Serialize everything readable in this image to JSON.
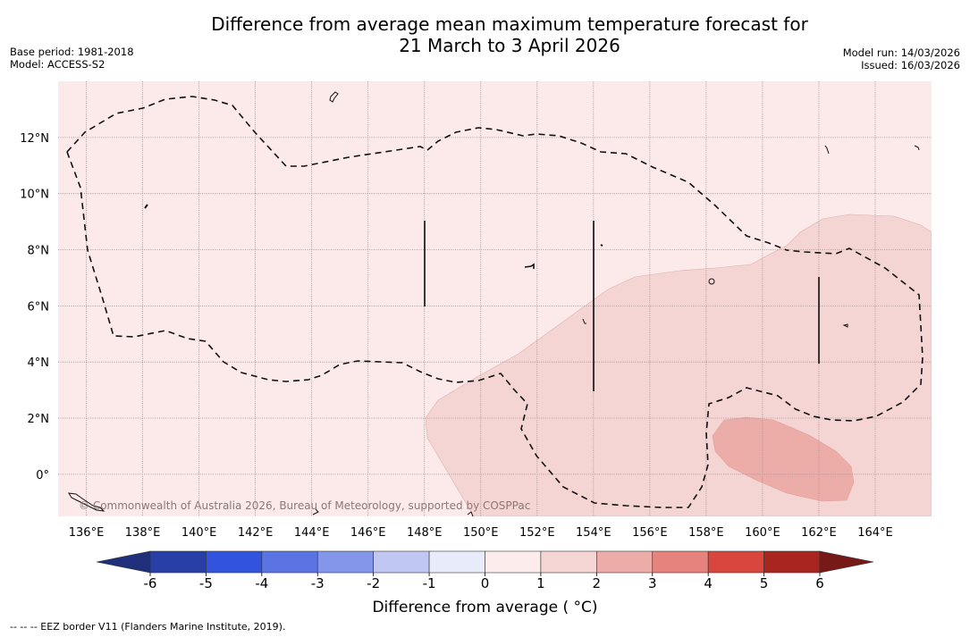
{
  "header": {
    "title_line1": "Difference from average mean maximum temperature forecast for",
    "title_line2": "21 March to 3 April 2026",
    "base_period": "Base period: 1981-2018",
    "model": "Model: ACCESS-S2",
    "model_run": "Model run: 14/03/2026",
    "issued": "Issued: 16/03/2026"
  },
  "map": {
    "lon_range": [
      135.0,
      166.0
    ],
    "lat_range": [
      -1.5,
      14.0
    ],
    "lon_ticks": [
      "136°E",
      "138°E",
      "140°E",
      "142°E",
      "144°E",
      "146°E",
      "148°E",
      "150°E",
      "152°E",
      "154°E",
      "156°E",
      "158°E",
      "160°E",
      "162°E",
      "164°E"
    ],
    "lat_ticks": [
      "12°N",
      "10°N",
      "8°N",
      "6°N",
      "4°N",
      "2°N",
      "0°"
    ],
    "background_category": "0 to 1",
    "regions": [
      {
        "category": "1 to 2",
        "color": "#f5d5d3"
      },
      {
        "category": "2 to 3",
        "color": "#ecaca8"
      }
    ],
    "copyright": "© Commonwealth of Australia 2026, Bureau of Meteorology, supported by COSPPac"
  },
  "colorbar": {
    "title": "Difference from average ( °C)",
    "ticks": [
      "-6",
      "-5",
      "-4",
      "-3",
      "-2",
      "-1",
      "0",
      "1",
      "2",
      "3",
      "4",
      "5",
      "6"
    ],
    "colors": [
      "#1f2f7a",
      "#283fa8",
      "#3153de",
      "#5b74e4",
      "#8496ea",
      "#c0c7f2",
      "#e8ebfa",
      "#fceceb",
      "#f5d5d3",
      "#ecaca8",
      "#e5837c",
      "#d9463e",
      "#a82520",
      "#771a17"
    ]
  },
  "footer": {
    "eez_note": "--  --  -- EEZ border V11 (Flanders Marine Institute, 2019)."
  }
}
